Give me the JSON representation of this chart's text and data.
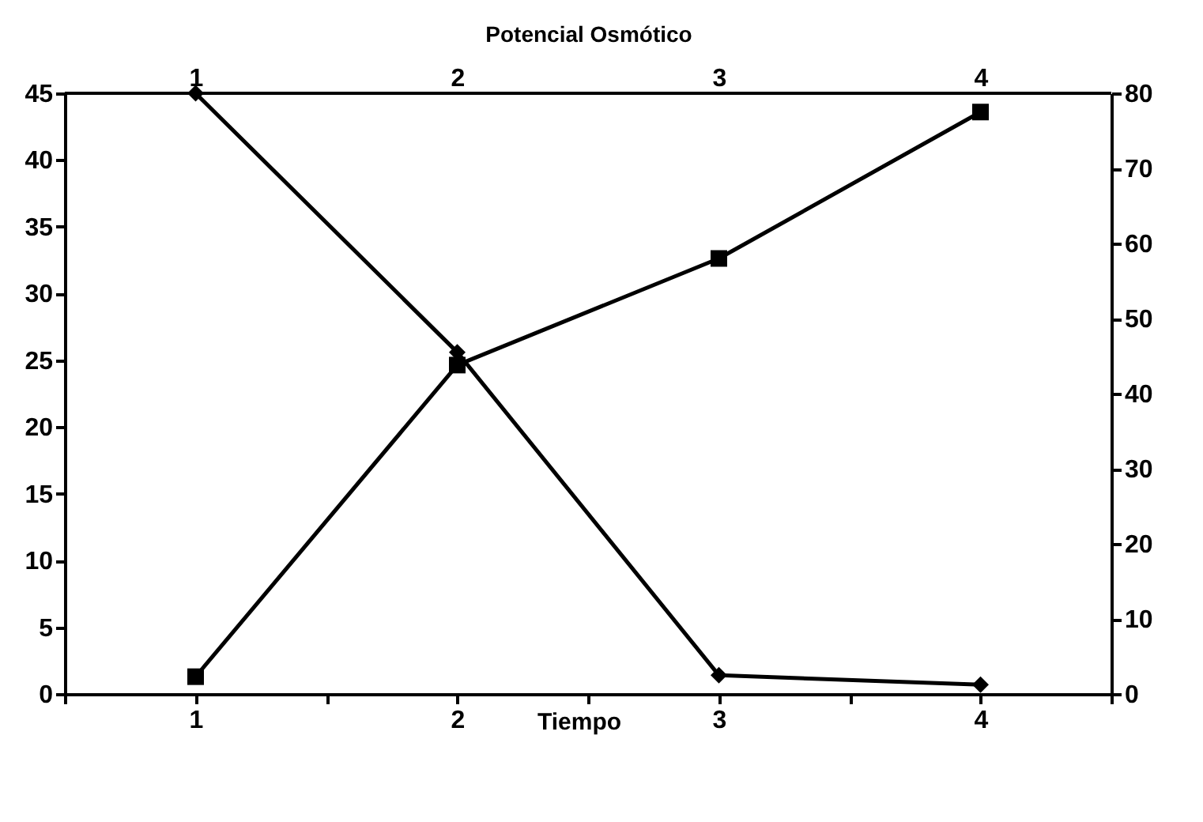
{
  "chart_data": {
    "type": "line",
    "xlabel": "Tiempo",
    "x2label": "Potencial Osmótico",
    "x": [
      1,
      2,
      3,
      4
    ],
    "xlim": [
      0.5,
      4.5
    ],
    "xticks": [
      {
        "value": 0.5,
        "label": null
      },
      1,
      {
        "value": 1.5,
        "label": null
      },
      2,
      {
        "value": 2.5,
        "label": null
      },
      3,
      {
        "value": 3.5,
        "label": null
      },
      4,
      {
        "value": 4.5,
        "label": null
      }
    ],
    "x2lim": [
      0.5,
      4.5
    ],
    "x2ticks": [
      1,
      2,
      3,
      4
    ],
    "ylim": [
      0,
      45
    ],
    "yticks": [
      0,
      5,
      10,
      15,
      20,
      25,
      30,
      35,
      40,
      45
    ],
    "y2lim": [
      0,
      80
    ],
    "y2ticks": [
      0,
      10,
      20,
      30,
      40,
      50,
      60,
      70,
      80
    ],
    "series": [
      {
        "color": "#000000",
        "marker": "diamond",
        "values": [
          45,
          25.6,
          1.4,
          0.7
        ]
      },
      {
        "color": "#000000",
        "marker": "square",
        "axis": "y2",
        "values": [
          2.3,
          43.8,
          58,
          77.5
        ]
      }
    ],
    "grid": false
  }
}
